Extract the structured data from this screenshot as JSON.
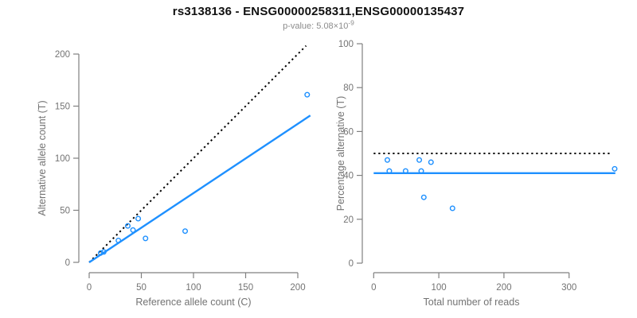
{
  "header": {
    "title": "rs3138136 - ENSG00000258311,ENSG00000135437",
    "subtitle_prefix": "p-value: 5.08×10",
    "subtitle_exponent": "-9"
  },
  "colors": {
    "accent_blue": "#1E90FF",
    "line_black": "#000000",
    "axis_gray": "#808080",
    "tick_text_gray": "#737373",
    "axis_label_gray": "#737373",
    "title_color": "#111111",
    "subtitle_gray": "#8c8c8c"
  },
  "chart_data": [
    {
      "id": "allele-counts-scatter",
      "type": "scatter",
      "xlabel": "Reference allele count (C)",
      "ylabel": "Alternative allele count (T)",
      "xlim": [
        0,
        212
      ],
      "ylim": [
        0,
        210
      ],
      "xticks": [
        0,
        50,
        100,
        150,
        200
      ],
      "yticks": [
        0,
        50,
        100,
        150,
        200
      ],
      "grid": false,
      "legend": "none",
      "points": [
        [
          11,
          9
        ],
        [
          14,
          10
        ],
        [
          28,
          21
        ],
        [
          37,
          35
        ],
        [
          42,
          31
        ],
        [
          47,
          42
        ],
        [
          54,
          23
        ],
        [
          92,
          30
        ],
        [
          209,
          161
        ]
      ],
      "lines": [
        {
          "name": "identity-line",
          "style": "dotted",
          "color_key": "line_black",
          "x1": 0,
          "y1": 0,
          "x2": 208,
          "y2": 208
        },
        {
          "name": "fit-line",
          "style": "solid",
          "color_key": "accent_blue",
          "x1": 0,
          "y1": 0,
          "x2": 212,
          "y2": 141
        }
      ]
    },
    {
      "id": "percentage-vs-reads-scatter",
      "type": "scatter",
      "xlabel": "Total number of reads",
      "ylabel": "Percentage alternative (T)",
      "xlim": [
        0,
        375
      ],
      "ylim": [
        0,
        100
      ],
      "xticks": [
        0,
        100,
        200,
        300
      ],
      "yticks": [
        0,
        20,
        40,
        60,
        80,
        100
      ],
      "grid": false,
      "legend": "none",
      "points": [
        [
          21,
          47
        ],
        [
          24,
          42
        ],
        [
          49,
          42
        ],
        [
          70,
          47
        ],
        [
          73,
          42
        ],
        [
          88,
          46
        ],
        [
          77,
          30
        ],
        [
          121,
          25
        ],
        [
          370,
          43
        ]
      ],
      "lines": [
        {
          "name": "expected-percentage-line",
          "style": "dotted",
          "color_key": "line_black",
          "x1": 0,
          "y1": 50,
          "x2": 366,
          "y2": 50
        },
        {
          "name": "fit-percentage-line",
          "style": "solid",
          "color_key": "accent_blue",
          "x1": 0,
          "y1": 41,
          "x2": 371,
          "y2": 41
        }
      ]
    }
  ]
}
